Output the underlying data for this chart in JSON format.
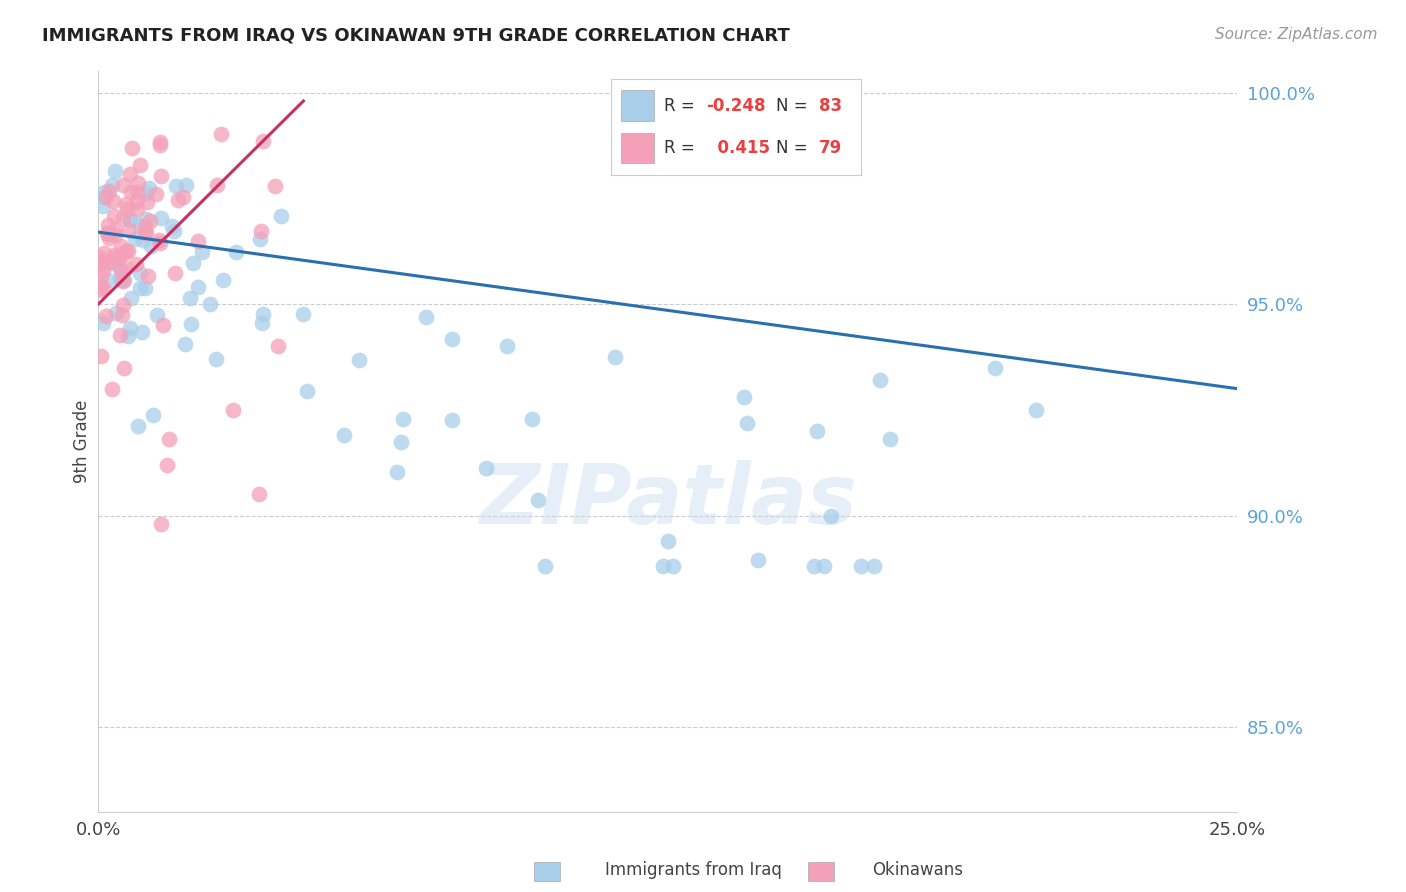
{
  "title": "IMMIGRANTS FROM IRAQ VS OKINAWAN 9TH GRADE CORRELATION CHART",
  "source": "Source: ZipAtlas.com",
  "ylabel": "9th Grade",
  "xlim": [
    0.0,
    0.25
  ],
  "ylim": [
    0.83,
    1.005
  ],
  "yticks": [
    0.85,
    0.9,
    0.95,
    1.0
  ],
  "ytick_labels": [
    "85.0%",
    "90.0%",
    "95.0%",
    "100.0%"
  ],
  "xtick_labels": [
    "0.0%",
    "25.0%"
  ],
  "blue_color": "#A8CEEA",
  "pink_color": "#F4A0B8",
  "line_blue_color": "#2970B0",
  "line_pink_color": "#C83060",
  "legend_R_blue": "-0.248",
  "legend_N_blue": "83",
  "legend_R_pink": "0.415",
  "legend_N_pink": "79",
  "watermark": "ZIPatlas",
  "blue_line_x": [
    0.0,
    0.25
  ],
  "blue_line_y": [
    0.967,
    0.93
  ],
  "pink_line_x": [
    0.0,
    0.045
  ],
  "pink_line_y": [
    0.95,
    0.998
  ]
}
